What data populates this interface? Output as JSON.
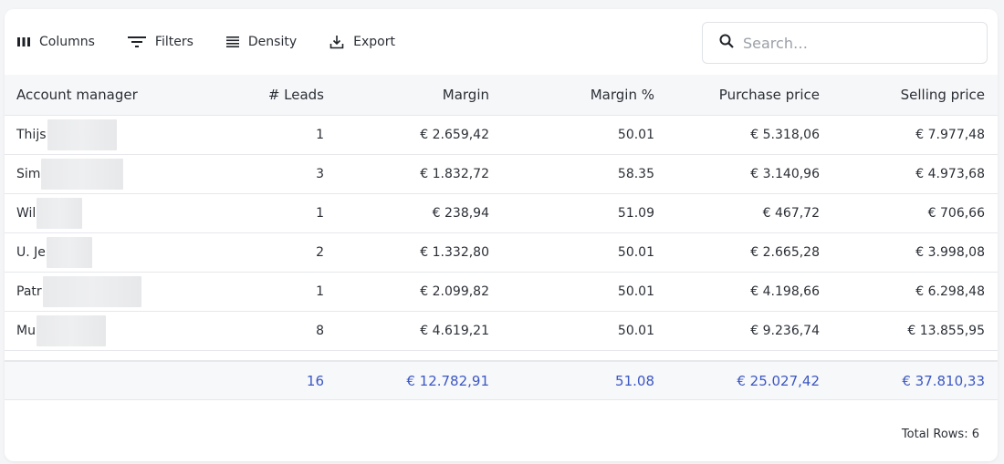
{
  "toolbar": {
    "columns_label": "Columns",
    "filters_label": "Filters",
    "density_label": "Density",
    "export_label": "Export",
    "search_placeholder": "Search…"
  },
  "table": {
    "headers": [
      "Account manager",
      "# Leads",
      "Margin",
      "Margin %",
      "Purchase price",
      "Selling price"
    ],
    "rows": [
      {
        "name": "Thijs",
        "leads": "1",
        "margin": "€ 2.659,42",
        "margin_pct": "50.01",
        "purchase": "€ 5.318,06",
        "selling": "€ 7.977,48"
      },
      {
        "name": "Sim",
        "leads": "3",
        "margin": "€ 1.832,72",
        "margin_pct": "58.35",
        "purchase": "€ 3.140,96",
        "selling": "€ 4.973,68"
      },
      {
        "name": "Wil",
        "leads": "1",
        "margin": "€ 238,94",
        "margin_pct": "51.09",
        "purchase": "€ 467,72",
        "selling": "€ 706,66"
      },
      {
        "name": "U. Je",
        "leads": "2",
        "margin": "€ 1.332,80",
        "margin_pct": "50.01",
        "purchase": "€ 2.665,28",
        "selling": "€ 3.998,08"
      },
      {
        "name": "Patr",
        "leads": "1",
        "margin": "€ 2.099,82",
        "margin_pct": "50.01",
        "purchase": "€ 4.198,66",
        "selling": "€ 6.298,48"
      },
      {
        "name": "Mu",
        "leads": "8",
        "margin": "€ 4.619,21",
        "margin_pct": "50.01",
        "purchase": "€ 9.236,74",
        "selling": "€ 13.855,95"
      }
    ],
    "totals": {
      "leads": "16",
      "margin": "€ 12.782,91",
      "margin_pct": "51.08",
      "purchase": "€ 25.027,42",
      "selling": "€ 37.810,33"
    }
  },
  "footer": {
    "total_rows": "Total Rows: 6"
  },
  "colors": {
    "accent": "#3c57c2",
    "header_bg": "#f6f7f9",
    "border": "#e6e8ec"
  },
  "icons": [
    "columns-icon",
    "filters-icon",
    "density-icon",
    "export-icon",
    "search-icon"
  ]
}
